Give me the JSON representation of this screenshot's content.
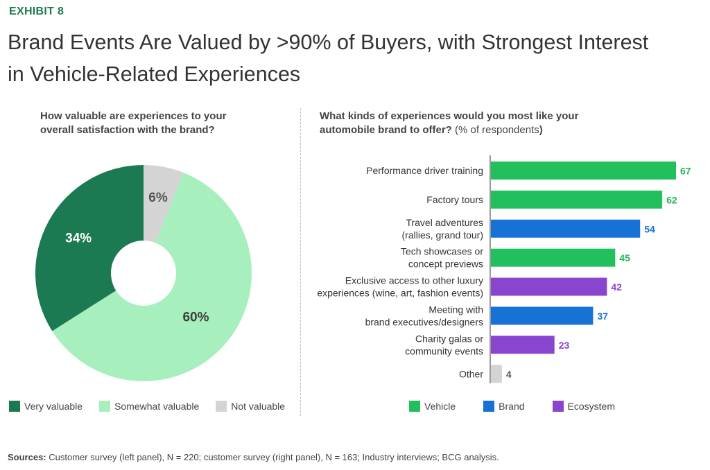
{
  "exhibit_label": "EXHIBIT 8",
  "title_line1": "Brand Events Are Valued by >90% of Buyers, with Strongest Interest",
  "title_line2": "in Vehicle-Related Experiences",
  "left_question_line1": "How valuable are experiences to your",
  "left_question_line2": "overall satisfaction with the brand?",
  "right_question_line1": "What kinds of experiences would you most like your",
  "right_question_line2_bold": "automobile brand to offer?",
  "right_question_line2_light": " (% of respondents",
  "right_question_close": ")",
  "sources_label": "Sources:",
  "sources_text": " Customer survey (left panel), N = 220; customer survey (right panel), N = 163; Industry interviews; BCG analysis.",
  "chart_data": [
    {
      "type": "pie",
      "title": "How valuable are experiences to your overall satisfaction with the brand?",
      "slices": [
        {
          "label": "Not valuable",
          "value": 6,
          "display": "6%",
          "color": "#d4d4d4",
          "text_color": "#555555"
        },
        {
          "label": "Somewhat valuable",
          "value": 60,
          "display": "60%",
          "color": "#a8efbe",
          "text_color": "#3f3f3f"
        },
        {
          "label": "Very valuable",
          "value": 34,
          "display": "34%",
          "color": "#1c7a52",
          "text_color": "#ffffff"
        }
      ],
      "donut_hole": true,
      "legend": [
        "Very valuable",
        "Somewhat valuable",
        "Not valuable"
      ]
    },
    {
      "type": "bar",
      "orientation": "horizontal",
      "title": "What kinds of experiences would you most like your automobile brand to offer? (% of respondents)",
      "categories": [
        [
          "Performance driver training"
        ],
        [
          "Factory tours"
        ],
        [
          "Travel adventures",
          "(rallies, grand tour)"
        ],
        [
          "Tech showcases or",
          "concept previews"
        ],
        [
          "Exclusive access to other luxury",
          "experiences (wine, art, fashion events)"
        ],
        [
          "Meeting with",
          "brand executives/designers"
        ],
        [
          "Charity galas or",
          "community events"
        ],
        [
          "Other"
        ]
      ],
      "values": [
        67,
        62,
        54,
        45,
        42,
        37,
        23,
        4
      ],
      "groups": [
        "Vehicle",
        "Vehicle",
        "Brand",
        "Vehicle",
        "Ecosystem",
        "Brand",
        "Ecosystem",
        "Other"
      ],
      "group_colors": {
        "Vehicle": "#22c05c",
        "Brand": "#1672d4",
        "Ecosystem": "#8a45cf",
        "Other": "#d4d4d4"
      },
      "label_colors": {
        "Vehicle": "#22b455",
        "Brand": "#1672d4",
        "Ecosystem": "#8a45cf",
        "Other": "#555555"
      },
      "xlim": [
        0,
        67
      ],
      "legend": [
        "Vehicle",
        "Brand",
        "Ecosystem"
      ]
    }
  ]
}
